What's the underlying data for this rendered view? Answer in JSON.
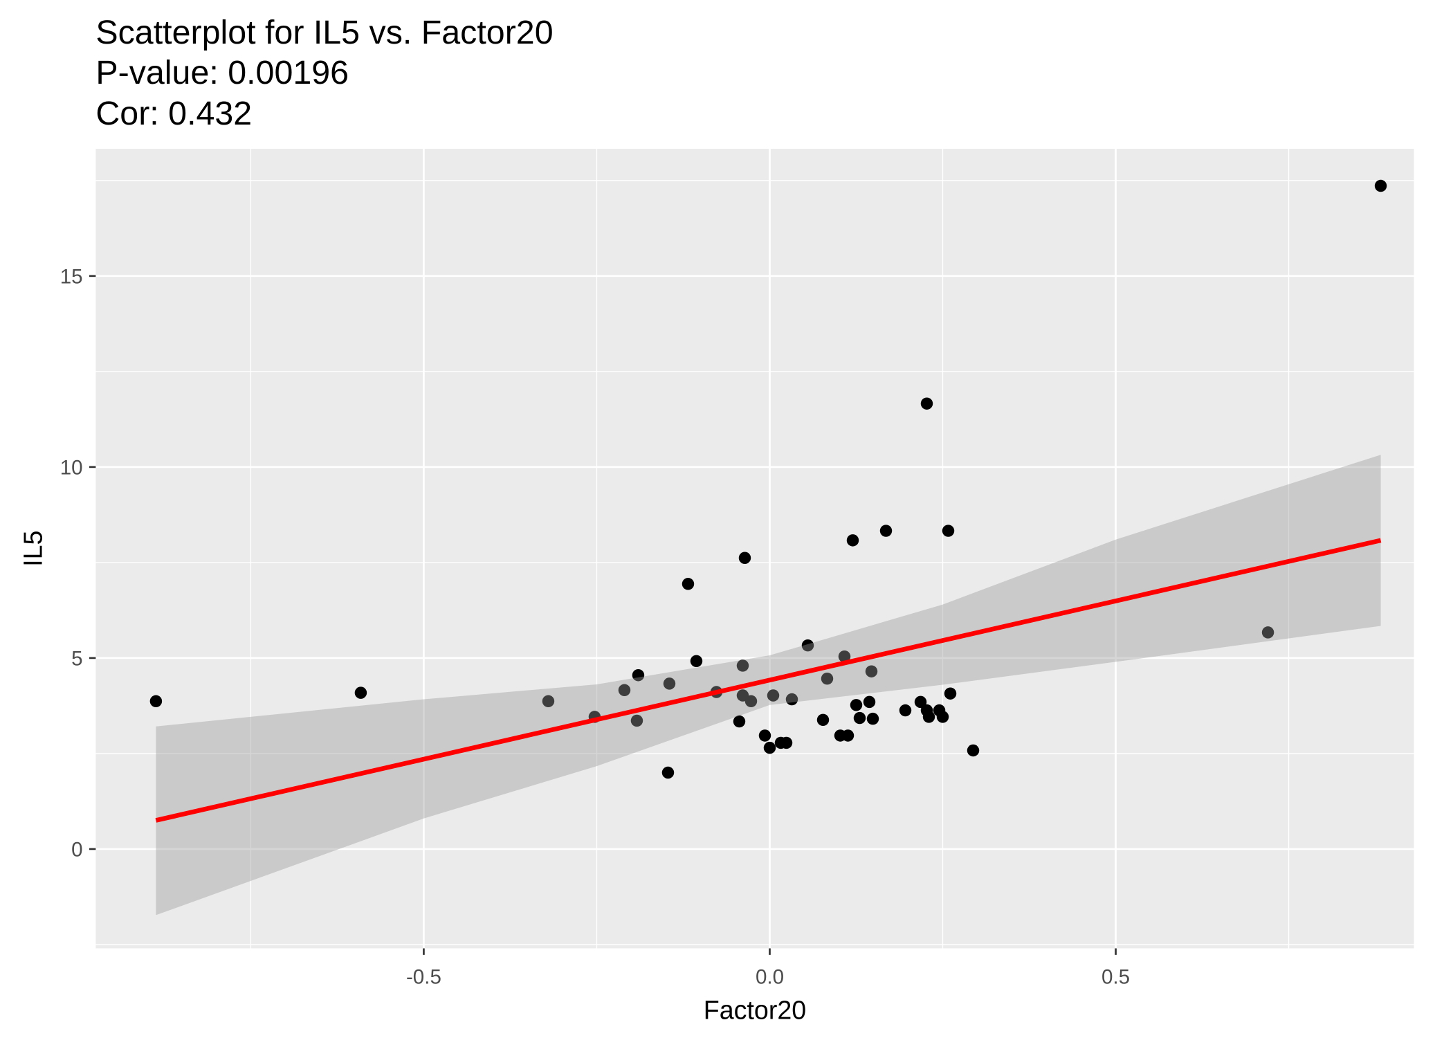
{
  "chart_data": {
    "type": "scatter",
    "title": "Scatterplot for IL5 vs. Factor20",
    "annotations": [
      "P-value: 0.00196",
      "Cor: 0.432"
    ],
    "x_label": "Factor20",
    "y_label": "IL5",
    "xlim": [
      -0.974,
      0.931
    ],
    "ylim": [
      -2.6,
      18.33
    ],
    "xticks": [
      -0.5,
      {
        "value": 0,
        "label": "0.0"
      },
      0.5
    ],
    "yticks": [
      0,
      5,
      10,
      15
    ],
    "grid": true,
    "series": [
      {
        "color": "#000000",
        "x": [
          -0.887,
          -0.591,
          -0.32,
          -0.253,
          -0.21,
          -0.19,
          -0.192,
          -0.145,
          -0.147,
          -0.118,
          -0.106,
          -0.077,
          -0.044,
          -0.039,
          -0.039,
          -0.036,
          -0.027,
          -0.007,
          0.0,
          0.005,
          0.016,
          0.024,
          0.032,
          0.055,
          0.077,
          0.083,
          0.102,
          0.108,
          0.113,
          0.12,
          0.125,
          0.13,
          0.144,
          0.147,
          0.149,
          0.168,
          0.196,
          0.218,
          0.227,
          0.227,
          0.23,
          0.245,
          0.25,
          0.258,
          0.261,
          0.294,
          0.72,
          0.883
        ],
        "values": [
          3.87,
          4.09,
          3.87,
          3.46,
          4.16,
          4.55,
          3.36,
          4.33,
          2.0,
          6.94,
          4.92,
          4.11,
          3.34,
          4.8,
          4.02,
          7.62,
          3.87,
          2.97,
          2.65,
          4.02,
          2.78,
          2.78,
          3.92,
          5.33,
          3.38,
          4.46,
          2.97,
          5.04,
          2.97,
          8.08,
          3.77,
          3.43,
          3.85,
          4.65,
          3.41,
          8.33,
          3.63,
          3.85,
          11.66,
          3.63,
          3.46,
          3.63,
          3.46,
          8.33,
          4.07,
          2.58,
          5.67,
          17.36
        ]
      }
    ],
    "fit": {
      "color": "#ff0000",
      "x": [
        -0.887,
        0.883
      ],
      "values": [
        0.75,
        8.08
      ]
    },
    "ribbon": {
      "color": "#999999",
      "x": [
        -0.887,
        -0.5,
        -0.25,
        0,
        0.25,
        0.5,
        0.883
      ],
      "upper": [
        3.21,
        3.92,
        4.31,
        5.07,
        6.4,
        8.1,
        10.32
      ],
      "lower": [
        -1.73,
        0.8,
        2.17,
        3.77,
        4.3,
        4.9,
        5.84
      ]
    }
  }
}
